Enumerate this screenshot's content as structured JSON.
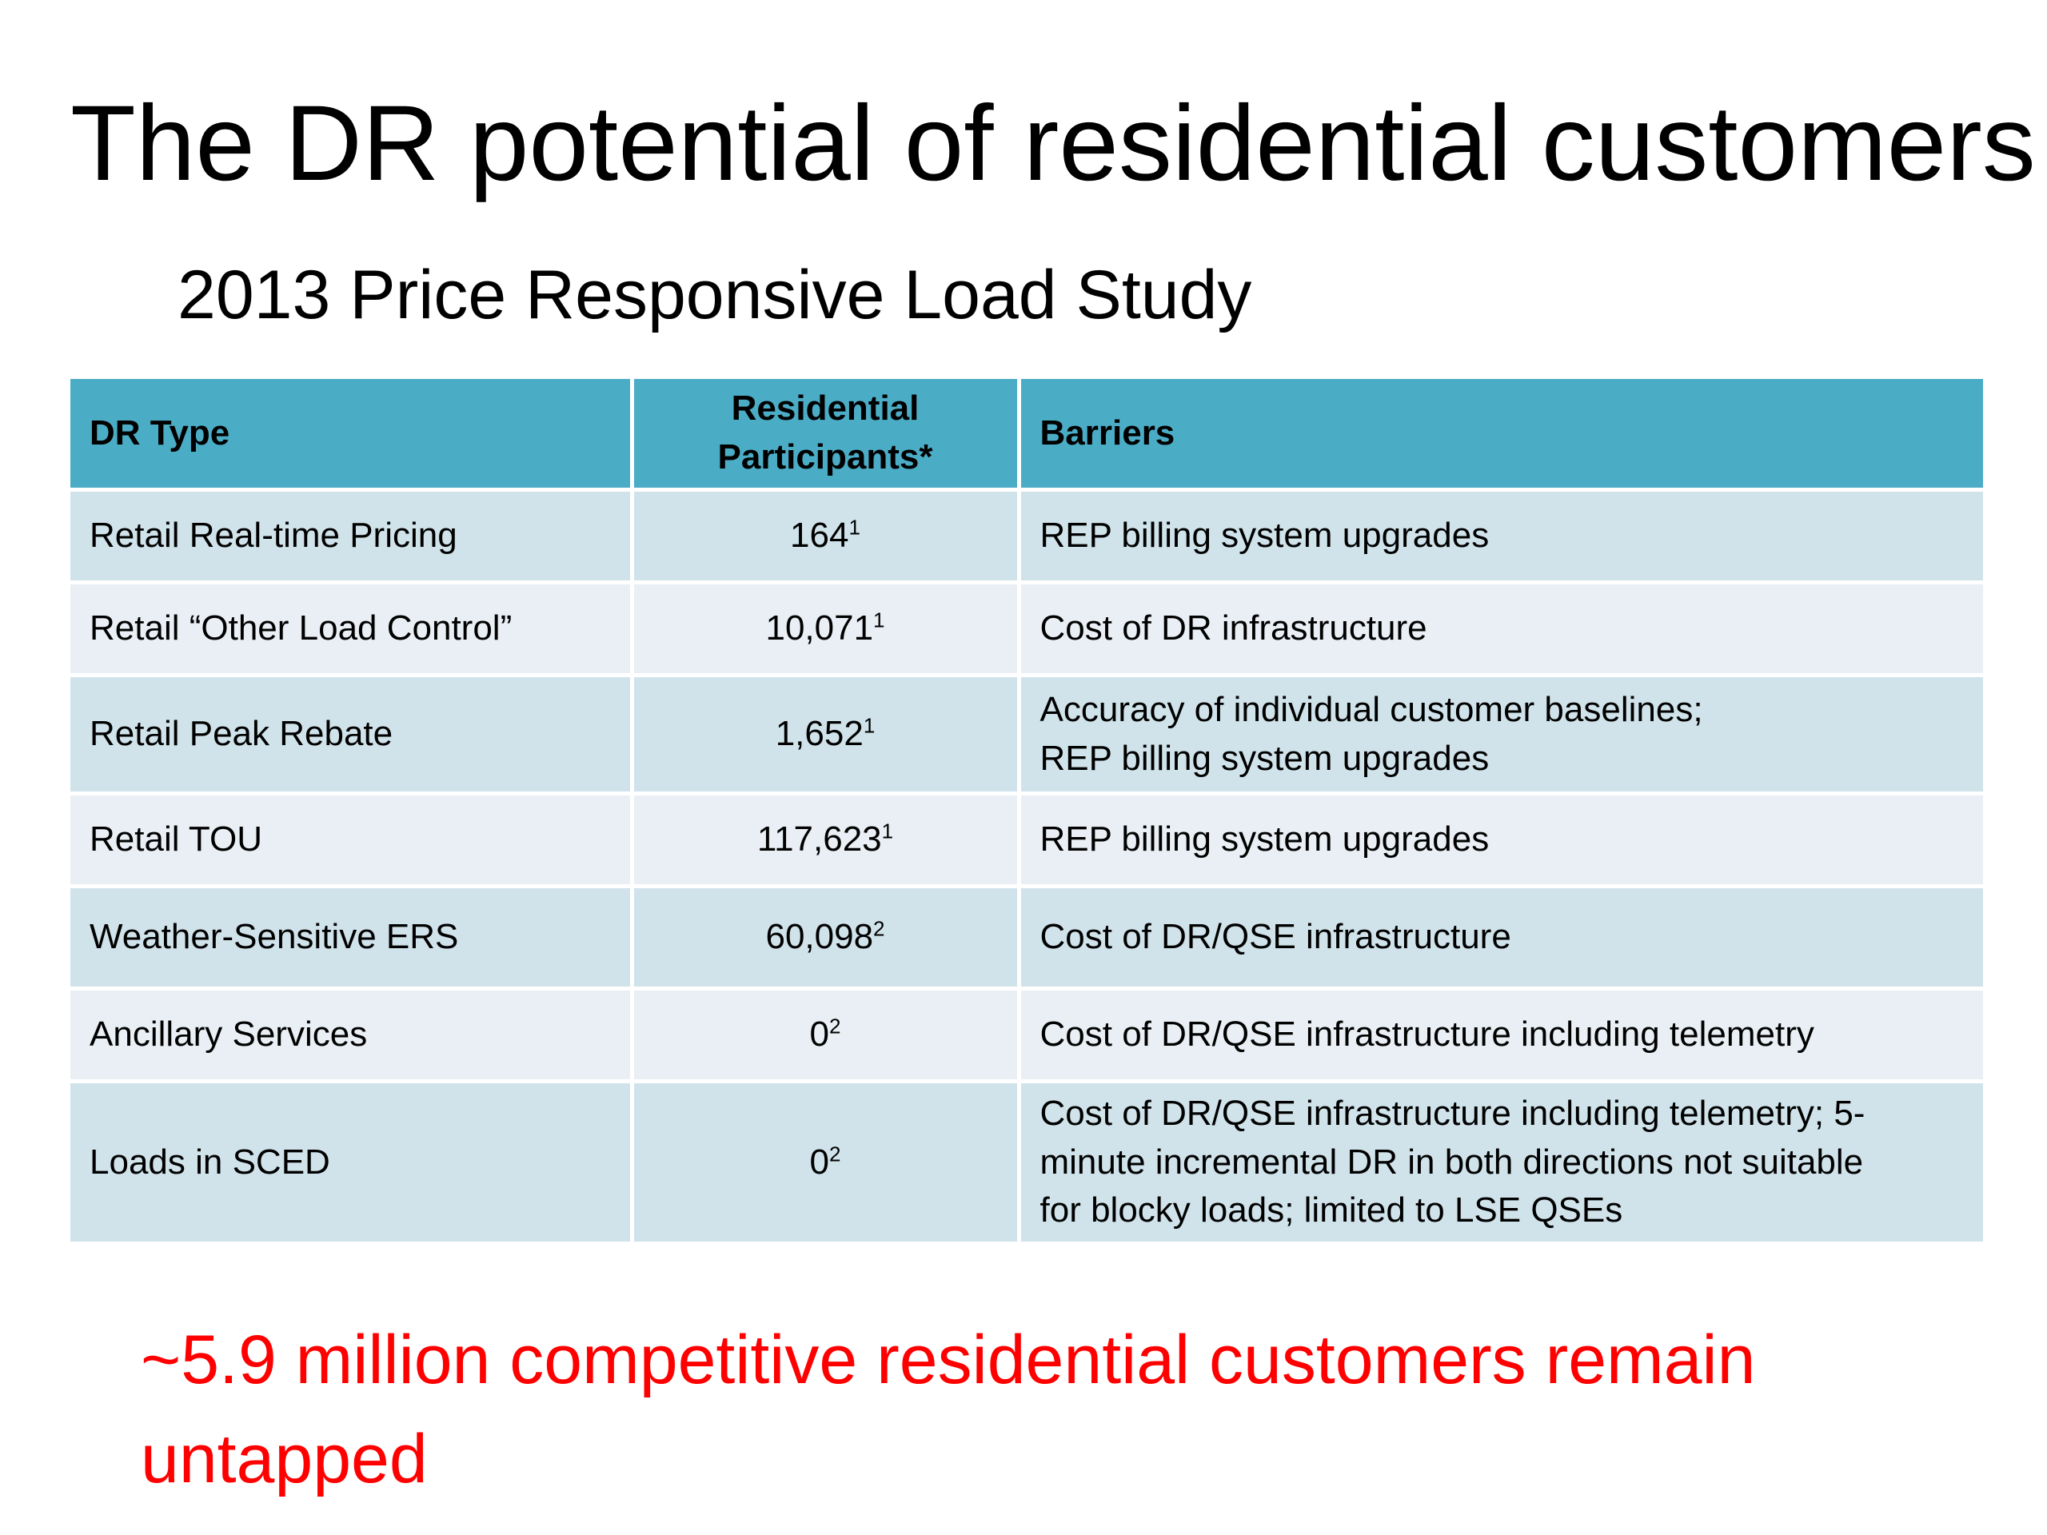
{
  "slide": {
    "title": "The DR potential of residential customers",
    "subtitle": "2013 Price Responsive Load Study"
  },
  "table": {
    "headers": {
      "dr_type": "DR Type",
      "participants_line1": "Residential",
      "participants_line2": "Participants*",
      "barriers": "Barriers"
    },
    "rows": [
      {
        "dr_type": "Retail Real-time Pricing",
        "participants": "164",
        "footnote": "1",
        "barriers": [
          "REP billing system upgrades"
        ]
      },
      {
        "dr_type": "Retail “Other Load Control”",
        "participants": "10,071",
        "footnote": "1",
        "barriers": [
          "Cost of DR infrastructure"
        ]
      },
      {
        "dr_type": "Retail Peak Rebate",
        "participants": "1,652",
        "footnote": "1",
        "barriers": [
          "Accuracy of individual customer baselines;",
          "REP billing system upgrades"
        ]
      },
      {
        "dr_type": "Retail TOU",
        "participants": "117,623",
        "footnote": "1",
        "barriers": [
          "REP billing system upgrades"
        ]
      },
      {
        "dr_type": "Weather-Sensitive ERS",
        "participants": "60,098",
        "footnote": "2",
        "barriers": [
          "Cost of DR/QSE infrastructure"
        ]
      },
      {
        "dr_type": "Ancillary Services",
        "participants": "0",
        "footnote": "2",
        "barriers": [
          "Cost of DR/QSE infrastructure including telemetry"
        ]
      },
      {
        "dr_type": "Loads in SCED",
        "participants": "0",
        "footnote": "2",
        "barriers": [
          "Cost of DR/QSE infrastructure including telemetry; 5-",
          "minute incremental DR in both directions not suitable",
          "for blocky loads; limited to LSE QSEs"
        ]
      }
    ]
  },
  "footer": {
    "note": "~5.9 million competitive residential customers remain untapped"
  },
  "colors": {
    "header_fill": "#4bacc6",
    "row_odd_fill": "#d0e3ea",
    "row_even_fill": "#e9eff4",
    "note_text": "#ff0000"
  }
}
